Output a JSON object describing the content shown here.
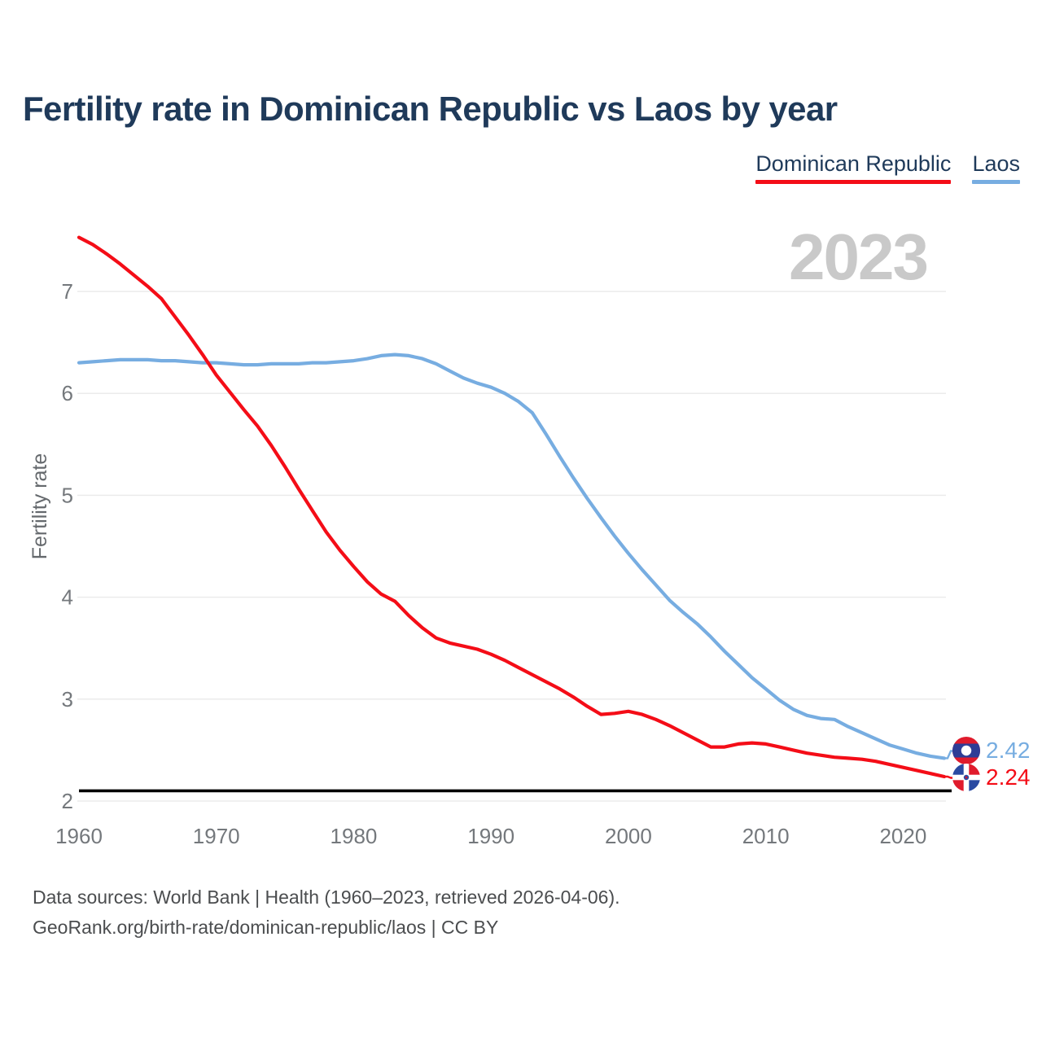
{
  "header": {
    "title": "Fertility rate in Dominican Republic vs Laos by year"
  },
  "legend": [
    {
      "label": "Dominican Republic",
      "color": "#f40d17"
    },
    {
      "label": "Laos",
      "color": "#77ade1"
    }
  ],
  "watermark": "2023",
  "chart_data": {
    "type": "line",
    "title": "Fertility rate in Dominican Republic vs Laos by year",
    "xlabel": "",
    "ylabel": "Fertility rate",
    "x_range": [
      1960,
      2023
    ],
    "x_ticks": [
      1960,
      1970,
      1980,
      1990,
      2000,
      2010,
      2020
    ],
    "y_ticks": [
      2,
      3,
      4,
      5,
      6,
      7
    ],
    "ylim": [
      1.95,
      7.6
    ],
    "grid": "horizontal",
    "legend_position": "top-right",
    "watermark": "2023",
    "reference_line": {
      "value": 2.1,
      "color": "#000000"
    },
    "years": [
      1960,
      1961,
      1962,
      1963,
      1964,
      1965,
      1966,
      1967,
      1968,
      1969,
      1970,
      1971,
      1972,
      1973,
      1974,
      1975,
      1976,
      1977,
      1978,
      1979,
      1980,
      1981,
      1982,
      1983,
      1984,
      1985,
      1986,
      1987,
      1988,
      1989,
      1990,
      1991,
      1992,
      1993,
      1994,
      1995,
      1996,
      1997,
      1998,
      1999,
      2000,
      2001,
      2002,
      2003,
      2004,
      2005,
      2006,
      2007,
      2008,
      2009,
      2010,
      2011,
      2012,
      2013,
      2014,
      2015,
      2016,
      2017,
      2018,
      2019,
      2020,
      2021,
      2022,
      2023
    ],
    "series": [
      {
        "name": "Dominican Republic",
        "color": "#f40d17",
        "end_label": "2.24",
        "end_value": 2.24,
        "values": [
          7.53,
          7.46,
          7.37,
          7.27,
          7.16,
          7.05,
          6.93,
          6.75,
          6.57,
          6.38,
          6.18,
          6.01,
          5.84,
          5.68,
          5.49,
          5.28,
          5.06,
          4.85,
          4.64,
          4.46,
          4.3,
          4.15,
          4.03,
          3.96,
          3.82,
          3.7,
          3.6,
          3.55,
          3.52,
          3.49,
          3.44,
          3.38,
          3.31,
          3.24,
          3.17,
          3.1,
          3.02,
          2.93,
          2.85,
          2.86,
          2.88,
          2.85,
          2.8,
          2.74,
          2.67,
          2.6,
          2.53,
          2.53,
          2.56,
          2.57,
          2.56,
          2.53,
          2.5,
          2.47,
          2.45,
          2.43,
          2.42,
          2.41,
          2.39,
          2.36,
          2.33,
          2.3,
          2.27,
          2.24
        ]
      },
      {
        "name": "Laos",
        "color": "#77ade1",
        "end_label": "2.42",
        "end_value": 2.42,
        "values": [
          6.3,
          6.31,
          6.32,
          6.33,
          6.33,
          6.33,
          6.32,
          6.32,
          6.31,
          6.3,
          6.3,
          6.29,
          6.28,
          6.28,
          6.29,
          6.29,
          6.29,
          6.3,
          6.3,
          6.31,
          6.32,
          6.34,
          6.37,
          6.38,
          6.37,
          6.34,
          6.29,
          6.22,
          6.15,
          6.1,
          6.06,
          6.0,
          5.92,
          5.81,
          5.6,
          5.38,
          5.17,
          4.97,
          4.78,
          4.6,
          4.43,
          4.27,
          4.12,
          3.97,
          3.85,
          3.74,
          3.61,
          3.47,
          3.34,
          3.21,
          3.1,
          2.99,
          2.9,
          2.84,
          2.81,
          2.8,
          2.73,
          2.67,
          2.61,
          2.55,
          2.51,
          2.47,
          2.44,
          2.42
        ]
      }
    ]
  },
  "icons": {
    "laos_flag": "laos-flag-icon",
    "dominican_republic_flag": "dominican-republic-flag-icon"
  },
  "footer": {
    "line1": "Data sources: World Bank | Health (1960–2023, retrieved 2026-04-06).",
    "line2": "GeoRank.org/birth-rate/dominican-republic/laos | CC BY"
  }
}
